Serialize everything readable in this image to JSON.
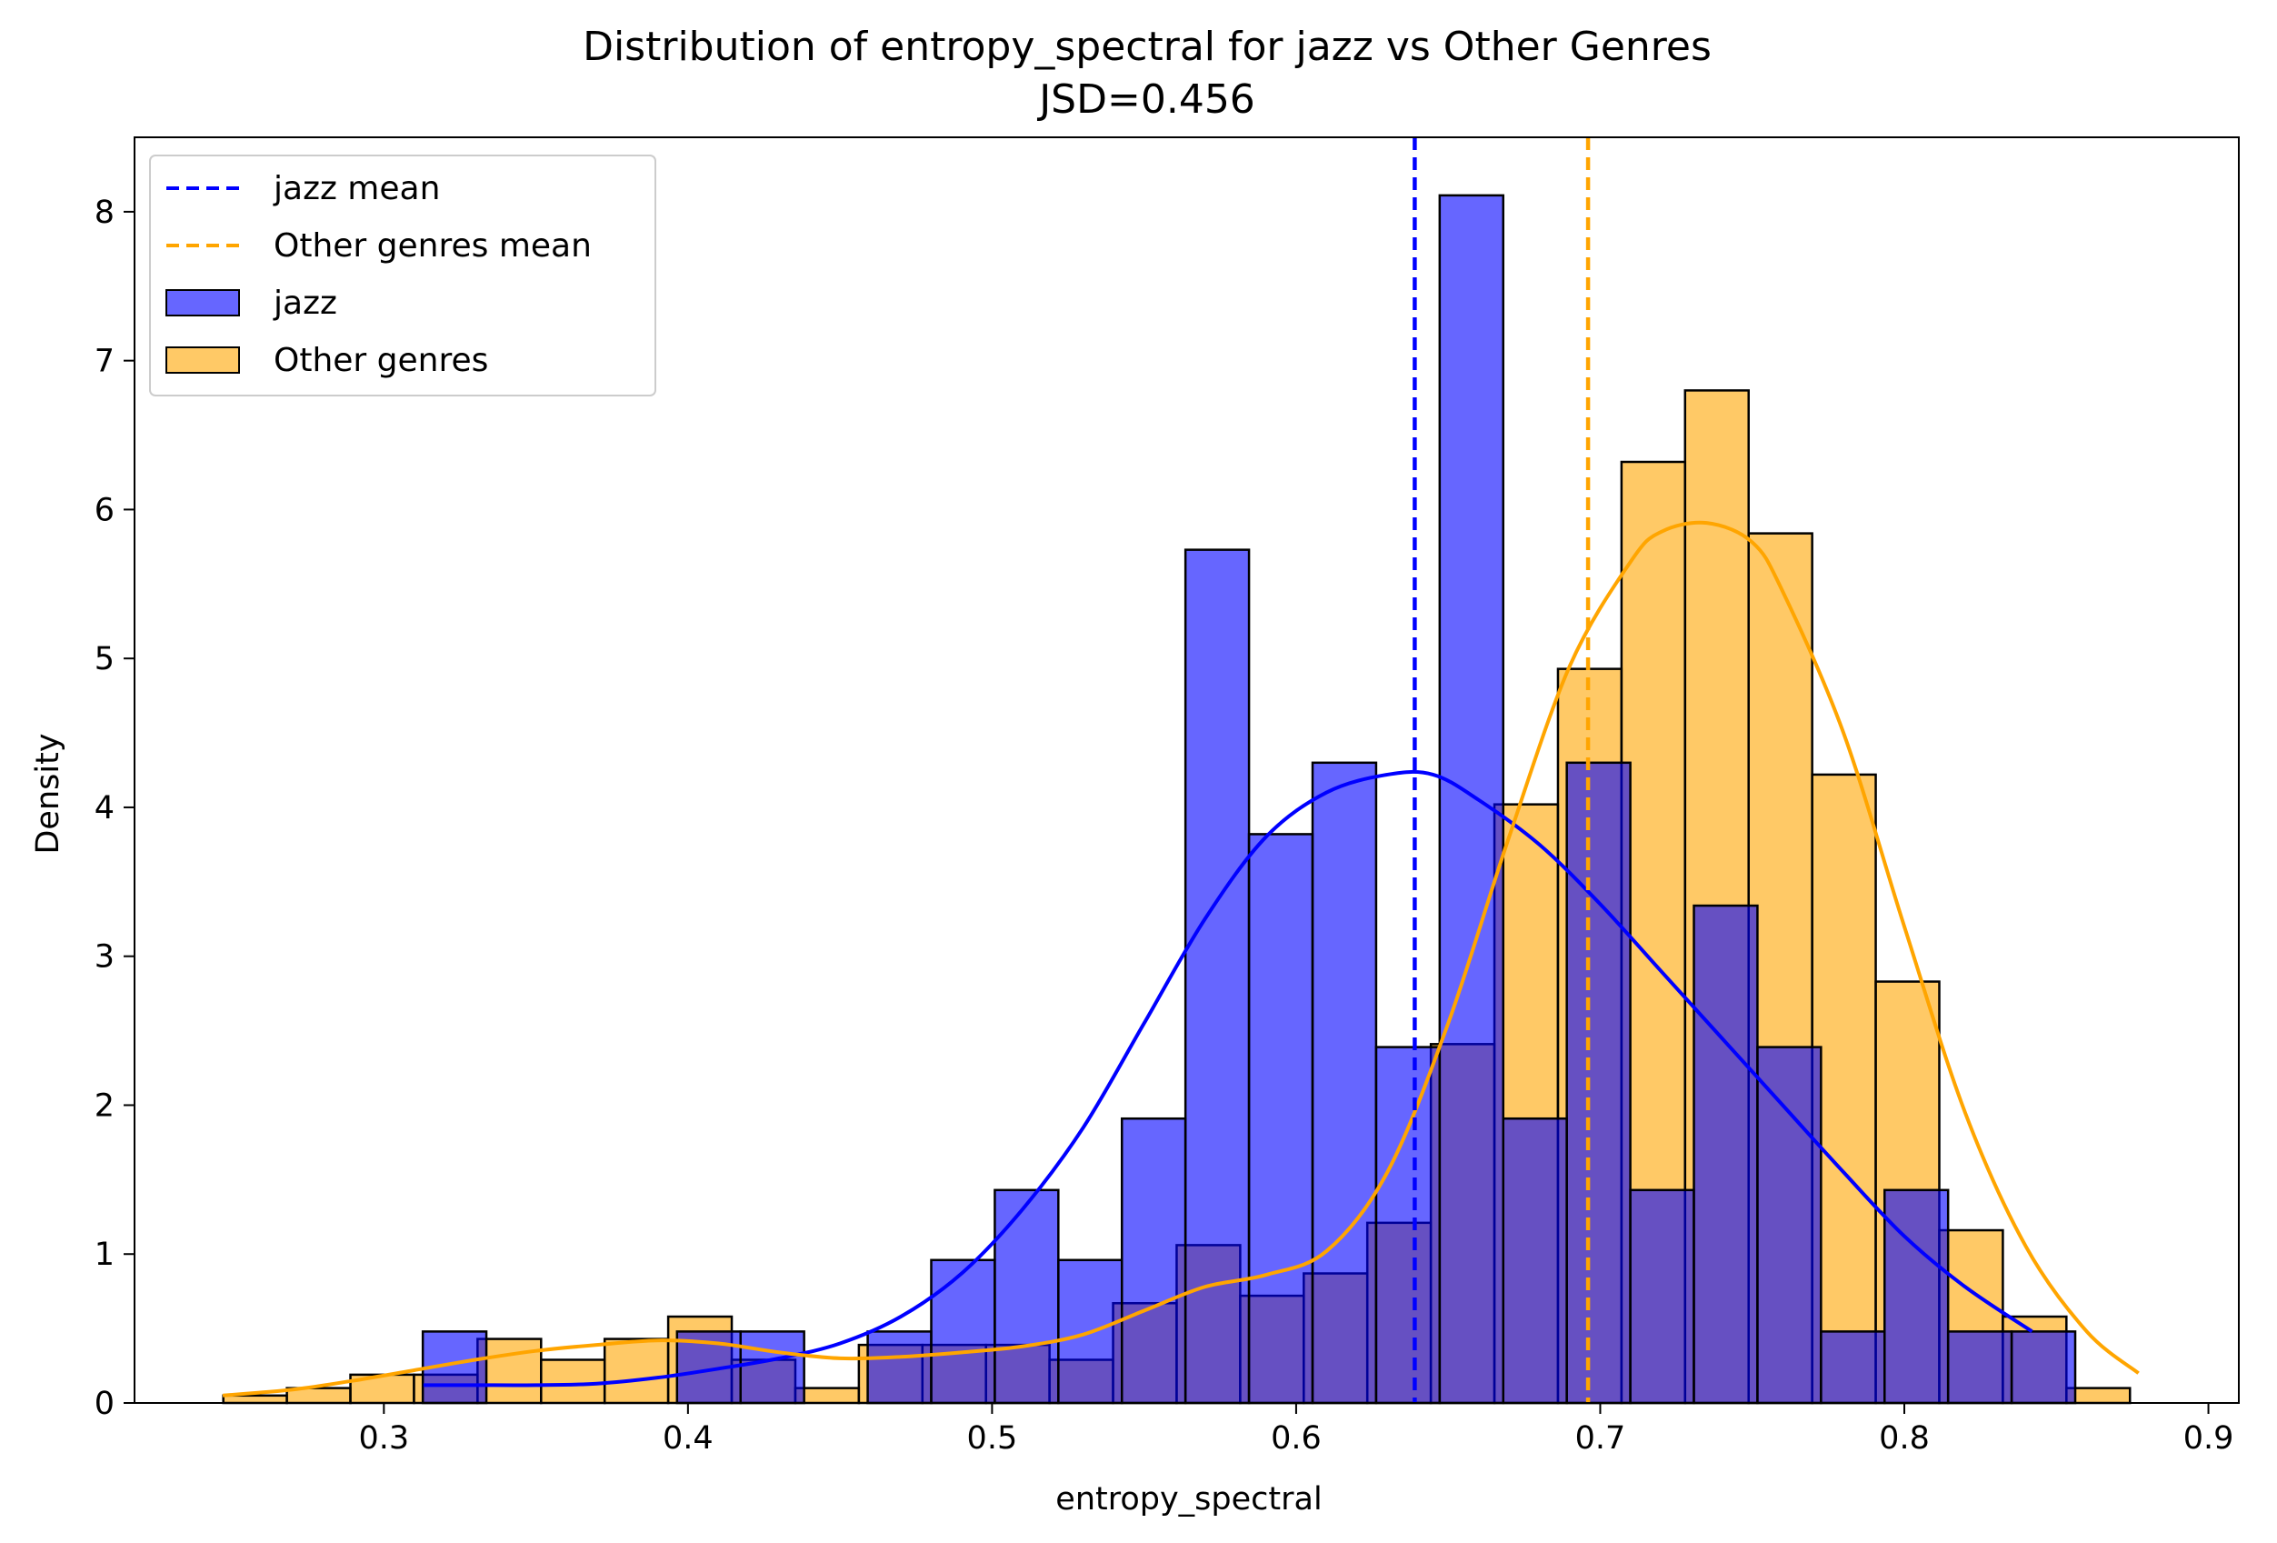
{
  "chart_data": {
    "type": "histogram",
    "title": "Distribution of entropy_spectral for jazz vs Other Genres",
    "subtitle": "JSD=0.456",
    "xlabel": "entropy_spectral",
    "ylabel": "Density",
    "xlim": [
      0.218,
      0.91
    ],
    "ylim": [
      0,
      8.5
    ],
    "x_ticks": [
      "0.3",
      "0.4",
      "0.5",
      "0.6",
      "0.7",
      "0.8",
      "0.9"
    ],
    "y_ticks": [
      "0",
      "1",
      "2",
      "3",
      "4",
      "5",
      "6",
      "7",
      "8"
    ],
    "legend_position": "upper-left",
    "legend": [
      {
        "label": "jazz mean",
        "kind": "dashed-line",
        "color": "#0000ff"
      },
      {
        "label": "Other genres mean",
        "kind": "dashed-line",
        "color": "#ffa500"
      },
      {
        "label": "jazz",
        "kind": "patch",
        "color": "#6666ff"
      },
      {
        "label": "Other genres",
        "kind": "patch",
        "color": "#ffc966"
      }
    ],
    "series": [
      {
        "name": "jazz",
        "color": "#0000ff",
        "fill": "#6666ff",
        "bins": [
          {
            "x0": 0.3128,
            "x1": 0.3337,
            "density": 0.48
          },
          {
            "x0": 0.3337,
            "x1": 0.3546,
            "density": 0.0
          },
          {
            "x0": 0.3546,
            "x1": 0.3755,
            "density": 0.0
          },
          {
            "x0": 0.3755,
            "x1": 0.3964,
            "density": 0.0
          },
          {
            "x0": 0.3964,
            "x1": 0.4173,
            "density": 0.48
          },
          {
            "x0": 0.4173,
            "x1": 0.4382,
            "density": 0.48
          },
          {
            "x0": 0.4382,
            "x1": 0.4591,
            "density": 0.0
          },
          {
            "x0": 0.4591,
            "x1": 0.48,
            "density": 0.48
          },
          {
            "x0": 0.48,
            "x1": 0.5009,
            "density": 0.96
          },
          {
            "x0": 0.5009,
            "x1": 0.5218,
            "density": 1.43
          },
          {
            "x0": 0.5218,
            "x1": 0.5427,
            "density": 0.96
          },
          {
            "x0": 0.5427,
            "x1": 0.5636,
            "density": 1.91
          },
          {
            "x0": 0.5636,
            "x1": 0.5845,
            "density": 5.73
          },
          {
            "x0": 0.5845,
            "x1": 0.6054,
            "density": 3.82
          },
          {
            "x0": 0.6054,
            "x1": 0.6263,
            "density": 4.3
          },
          {
            "x0": 0.6263,
            "x1": 0.6472,
            "density": 2.39
          },
          {
            "x0": 0.6472,
            "x1": 0.6681,
            "density": 8.11
          },
          {
            "x0": 0.6681,
            "x1": 0.689,
            "density": 1.91
          },
          {
            "x0": 0.689,
            "x1": 0.7099,
            "density": 4.3
          },
          {
            "x0": 0.7099,
            "x1": 0.7308,
            "density": 1.43
          },
          {
            "x0": 0.7308,
            "x1": 0.7517,
            "density": 3.34
          },
          {
            "x0": 0.7517,
            "x1": 0.7726,
            "density": 2.39
          },
          {
            "x0": 0.7726,
            "x1": 0.7935,
            "density": 0.48
          },
          {
            "x0": 0.7935,
            "x1": 0.8144,
            "density": 1.43
          },
          {
            "x0": 0.8144,
            "x1": 0.8353,
            "density": 0.48
          },
          {
            "x0": 0.8353,
            "x1": 0.8562,
            "density": 0.48
          }
        ],
        "mean": 0.639,
        "kde": [
          [
            0.313,
            0.12
          ],
          [
            0.33,
            0.12
          ],
          [
            0.35,
            0.12
          ],
          [
            0.37,
            0.13
          ],
          [
            0.39,
            0.17
          ],
          [
            0.41,
            0.23
          ],
          [
            0.43,
            0.3
          ],
          [
            0.45,
            0.4
          ],
          [
            0.47,
            0.58
          ],
          [
            0.49,
            0.87
          ],
          [
            0.51,
            1.3
          ],
          [
            0.53,
            1.85
          ],
          [
            0.55,
            2.55
          ],
          [
            0.57,
            3.25
          ],
          [
            0.59,
            3.8
          ],
          [
            0.61,
            4.1
          ],
          [
            0.63,
            4.22
          ],
          [
            0.645,
            4.22
          ],
          [
            0.66,
            4.05
          ],
          [
            0.68,
            3.75
          ],
          [
            0.7,
            3.35
          ],
          [
            0.72,
            2.9
          ],
          [
            0.74,
            2.45
          ],
          [
            0.76,
            2.0
          ],
          [
            0.78,
            1.55
          ],
          [
            0.8,
            1.12
          ],
          [
            0.82,
            0.78
          ],
          [
            0.842,
            0.48
          ]
        ]
      },
      {
        "name": "Other genres",
        "color": "#ffa500",
        "fill": "#ffc966",
        "bins": [
          {
            "x0": 0.2472,
            "x1": 0.2681,
            "density": 0.05
          },
          {
            "x0": 0.2681,
            "x1": 0.289,
            "density": 0.1
          },
          {
            "x0": 0.289,
            "x1": 0.3099,
            "density": 0.19
          },
          {
            "x0": 0.3099,
            "x1": 0.3308,
            "density": 0.19
          },
          {
            "x0": 0.3308,
            "x1": 0.3517,
            "density": 0.43
          },
          {
            "x0": 0.3517,
            "x1": 0.3726,
            "density": 0.29
          },
          {
            "x0": 0.3726,
            "x1": 0.3935,
            "density": 0.43
          },
          {
            "x0": 0.3935,
            "x1": 0.4144,
            "density": 0.58
          },
          {
            "x0": 0.4144,
            "x1": 0.4353,
            "density": 0.29
          },
          {
            "x0": 0.4353,
            "x1": 0.4562,
            "density": 0.1
          },
          {
            "x0": 0.4562,
            "x1": 0.4771,
            "density": 0.39
          },
          {
            "x0": 0.4771,
            "x1": 0.498,
            "density": 0.39
          },
          {
            "x0": 0.498,
            "x1": 0.5189,
            "density": 0.39
          },
          {
            "x0": 0.5189,
            "x1": 0.5398,
            "density": 0.29
          },
          {
            "x0": 0.5398,
            "x1": 0.5607,
            "density": 0.67
          },
          {
            "x0": 0.5607,
            "x1": 0.5816,
            "density": 1.06
          },
          {
            "x0": 0.5816,
            "x1": 0.6025,
            "density": 0.72
          },
          {
            "x0": 0.6025,
            "x1": 0.6234,
            "density": 0.87
          },
          {
            "x0": 0.6234,
            "x1": 0.6443,
            "density": 1.21
          },
          {
            "x0": 0.6443,
            "x1": 0.6652,
            "density": 2.41
          },
          {
            "x0": 0.6652,
            "x1": 0.6861,
            "density": 4.02
          },
          {
            "x0": 0.6861,
            "x1": 0.707,
            "density": 4.93
          },
          {
            "x0": 0.707,
            "x1": 0.7279,
            "density": 6.32
          },
          {
            "x0": 0.7279,
            "x1": 0.7488,
            "density": 6.8
          },
          {
            "x0": 0.7488,
            "x1": 0.7697,
            "density": 5.84
          },
          {
            "x0": 0.7697,
            "x1": 0.7906,
            "density": 4.22
          },
          {
            "x0": 0.7906,
            "x1": 0.8115,
            "density": 2.83
          },
          {
            "x0": 0.8115,
            "x1": 0.8324,
            "density": 1.16
          },
          {
            "x0": 0.8324,
            "x1": 0.8533,
            "density": 0.58
          },
          {
            "x0": 0.8533,
            "x1": 0.8742,
            "density": 0.1
          }
        ],
        "mean": 0.696,
        "kde": [
          [
            0.247,
            0.05
          ],
          [
            0.27,
            0.09
          ],
          [
            0.29,
            0.15
          ],
          [
            0.31,
            0.22
          ],
          [
            0.33,
            0.29
          ],
          [
            0.35,
            0.35
          ],
          [
            0.37,
            0.39
          ],
          [
            0.39,
            0.42
          ],
          [
            0.41,
            0.4
          ],
          [
            0.43,
            0.34
          ],
          [
            0.45,
            0.3
          ],
          [
            0.47,
            0.31
          ],
          [
            0.49,
            0.34
          ],
          [
            0.51,
            0.38
          ],
          [
            0.53,
            0.46
          ],
          [
            0.55,
            0.62
          ],
          [
            0.57,
            0.78
          ],
          [
            0.59,
            0.86
          ],
          [
            0.61,
            1.02
          ],
          [
            0.63,
            1.55
          ],
          [
            0.65,
            2.55
          ],
          [
            0.67,
            3.8
          ],
          [
            0.69,
            4.95
          ],
          [
            0.71,
            5.65
          ],
          [
            0.72,
            5.85
          ],
          [
            0.735,
            5.91
          ],
          [
            0.75,
            5.78
          ],
          [
            0.76,
            5.45
          ],
          [
            0.78,
            4.5
          ],
          [
            0.8,
            3.2
          ],
          [
            0.82,
            1.95
          ],
          [
            0.84,
            1.05
          ],
          [
            0.86,
            0.48
          ],
          [
            0.877,
            0.2
          ]
        ]
      }
    ]
  }
}
